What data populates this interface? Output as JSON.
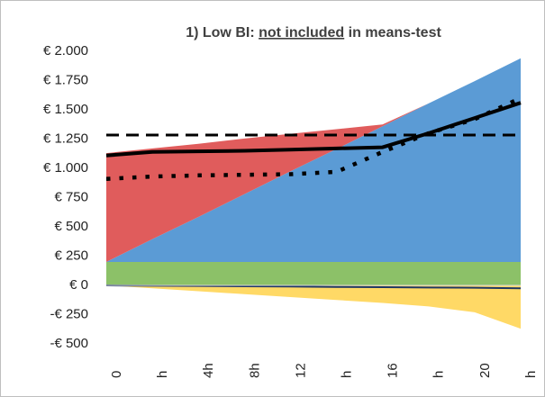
{
  "chart_data": {
    "type": "area",
    "title": [
      {
        "text": "1) Low BI: "
      },
      {
        "text": "not included",
        "underline": "#c00000"
      },
      {
        "text": " in means-test"
      }
    ],
    "categories": [
      "0",
      "h",
      "4h",
      "8h",
      "12",
      "h",
      "16",
      "h",
      "20",
      "h"
    ],
    "ylim": [
      -500,
      2000
    ],
    "yticks": [
      {
        "value": -500,
        "label": "-€ 500"
      },
      {
        "value": -250,
        "label": "-€ 250"
      },
      {
        "value": 0,
        "label": "€ 0"
      },
      {
        "value": 250,
        "label": "€ 250"
      },
      {
        "value": 500,
        "label": "€ 500"
      },
      {
        "value": 750,
        "label": "€ 750"
      },
      {
        "value": 1000,
        "label": "€ 1.000"
      },
      {
        "value": 1250,
        "label": "€ 1.250"
      },
      {
        "value": 1500,
        "label": "€ 1.500"
      },
      {
        "value": 1750,
        "label": "€ 1.750"
      },
      {
        "value": 2000,
        "label": "€ 2.000"
      }
    ],
    "grid": false,
    "series": [
      {
        "kind": "area",
        "color": "#8cc168",
        "values": [
          200,
          200,
          200,
          200,
          200,
          200,
          200,
          200,
          200,
          200
        ]
      },
      {
        "kind": "area",
        "color": "#5b9bd5",
        "values": [
          0,
          195,
          385,
          580,
          775,
          965,
          1160,
          1355,
          1545,
          1740
        ]
      },
      {
        "kind": "area",
        "color": "#e05c5c",
        "values": [
          930,
          775,
          625,
          475,
          320,
          170,
          15,
          0,
          0,
          0
        ]
      },
      {
        "kind": "area",
        "color": "#ffd966",
        "values": [
          0,
          -25,
          -50,
          -75,
          -100,
          -125,
          -150,
          -180,
          -230,
          -370
        ]
      },
      {
        "kind": "line",
        "dash": "solid",
        "width": 2,
        "color": "#1f3864",
        "values": [
          0,
          -3,
          -5,
          -8,
          -10,
          -13,
          -15,
          -18,
          -20,
          -25
        ]
      },
      {
        "kind": "line",
        "dash": "dashed",
        "width": 3,
        "color": "#000000",
        "values": [
          1285,
          1285,
          1285,
          1285,
          1285,
          1285,
          1285,
          1285,
          1285,
          1285
        ]
      },
      {
        "kind": "line",
        "dash": "dotted",
        "width": 4.5,
        "color": "#000000",
        "values": [
          910,
          930,
          940,
          945,
          950,
          970,
          1140,
          1300,
          1420,
          1600
        ]
      },
      {
        "kind": "line",
        "dash": "solid",
        "width": 4,
        "color": "#000000",
        "values": [
          1110,
          1140,
          1145,
          1150,
          1160,
          1170,
          1180,
          1300,
          1430,
          1560
        ]
      }
    ]
  }
}
